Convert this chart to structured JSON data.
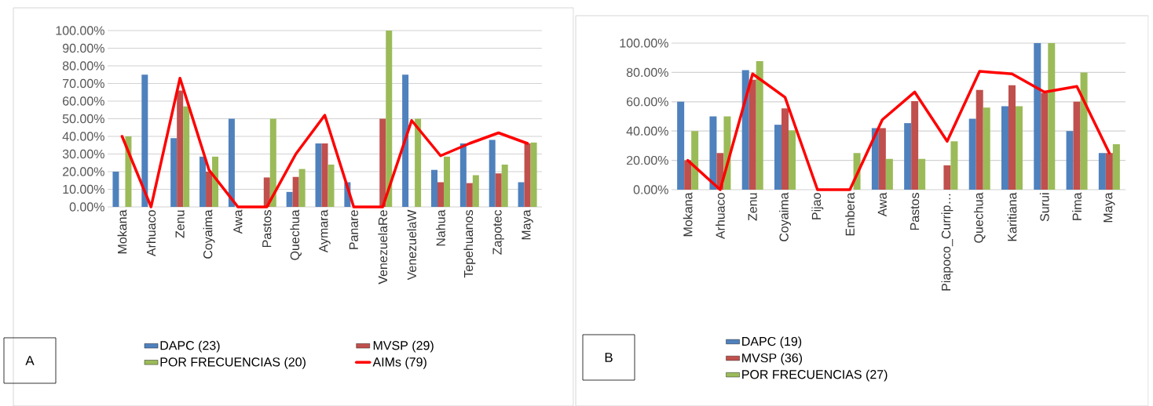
{
  "chart_data": [
    {
      "type": "bar",
      "categories": [
        "Mokana",
        "Arhuaco",
        "Zenu",
        "Coyaima",
        "Awa",
        "Pastos",
        "Quechua",
        "Aymara",
        "Panare",
        "VenezuelaRe",
        "VenezuelaW",
        "Nahua",
        "Tepehuanos",
        "Zapotec",
        "Maya"
      ],
      "series": [
        {
          "name": "DAPC (23)",
          "color": "#4f81bd",
          "values": [
            20,
            75,
            39,
            28.5,
            50,
            0,
            8.5,
            36,
            14,
            0,
            75,
            21,
            36,
            38,
            14
          ]
        },
        {
          "name": "MVSP (29)",
          "color": "#c0504d",
          "values": [
            0,
            0,
            66,
            20,
            0,
            16.7,
            17,
            36,
            0,
            50,
            0,
            14,
            13.5,
            19,
            36
          ]
        },
        {
          "name": "POR FRECUENCIAS (20)",
          "color": "#9bbb59",
          "values": [
            40,
            0,
            57,
            28.5,
            0,
            50,
            21.5,
            24,
            0,
            100,
            50,
            28.5,
            18,
            24,
            36.5
          ]
        },
        {
          "name": "AIMs (79)",
          "type": "line",
          "color": "#ff0000",
          "values": [
            40,
            0,
            73,
            21,
            0,
            0,
            30,
            52,
            0,
            0,
            49,
            29,
            36,
            42,
            36
          ]
        }
      ],
      "ylim": [
        0,
        100
      ],
      "yticks": [
        {
          "value": 0,
          "label": "0.00%"
        },
        {
          "value": 10,
          "label": "10.00%"
        },
        {
          "value": 20,
          "label": "20.00%"
        },
        {
          "value": 30,
          "label": "30.00%"
        },
        {
          "value": 40,
          "label": "40.00%"
        },
        {
          "value": 50,
          "label": "50.00%"
        },
        {
          "value": 60,
          "label": "60.00%"
        },
        {
          "value": 70,
          "label": "70.00%"
        },
        {
          "value": 80,
          "label": "80.00%"
        },
        {
          "value": 90,
          "label": "90.00%"
        },
        {
          "value": 100,
          "label": "100.00%"
        }
      ],
      "grid": "y",
      "legend": "bottom",
      "annotations": [
        "A"
      ]
    },
    {
      "type": "bar",
      "categories": [
        "Mokana",
        "Arhuaco",
        "Zenu",
        "Coyaima",
        "Pijao",
        "Embera",
        "Awa",
        "Pastos",
        "Piapoco_Currip…",
        "Quechua",
        "Karitiana",
        "Surui",
        "Pima",
        "Maya"
      ],
      "series": [
        {
          "name": "DAPC (19)",
          "color": "#4f81bd",
          "values": [
            60,
            50,
            81.6,
            44.3,
            0,
            0,
            42,
            45.4,
            0,
            48.4,
            57,
            100,
            40,
            25
          ]
        },
        {
          "name": "MVSP (36)",
          "color": "#c0504d",
          "values": [
            20,
            25,
            75,
            55.5,
            0,
            0,
            42,
            60.4,
            16.6,
            68,
            71.3,
            66,
            60,
            25
          ]
        },
        {
          "name": "POR FRECUENCIAS (27)",
          "color": "#9bbb59",
          "values": [
            40,
            50,
            87.7,
            40.5,
            0,
            25,
            21,
            21,
            33,
            56,
            57,
            100,
            80,
            31
          ]
        },
        {
          "type": "line",
          "color": "#ff0000",
          "values": [
            20,
            0,
            79,
            63,
            0,
            0,
            47.7,
            66.6,
            33,
            80.7,
            79,
            66.6,
            70.5,
            25
          ]
        }
      ],
      "ylim": [
        0,
        100
      ],
      "yticks": [
        {
          "value": 0,
          "label": "0.00%"
        },
        {
          "value": 20,
          "label": "20.00%"
        },
        {
          "value": 40,
          "label": "40.00%"
        },
        {
          "value": 60,
          "label": "60.00%"
        },
        {
          "value": 80,
          "label": "80.00%"
        },
        {
          "value": 100,
          "label": "100.00%"
        }
      ],
      "grid": "y",
      "legend": "bottom",
      "annotations": [
        "B"
      ]
    }
  ]
}
